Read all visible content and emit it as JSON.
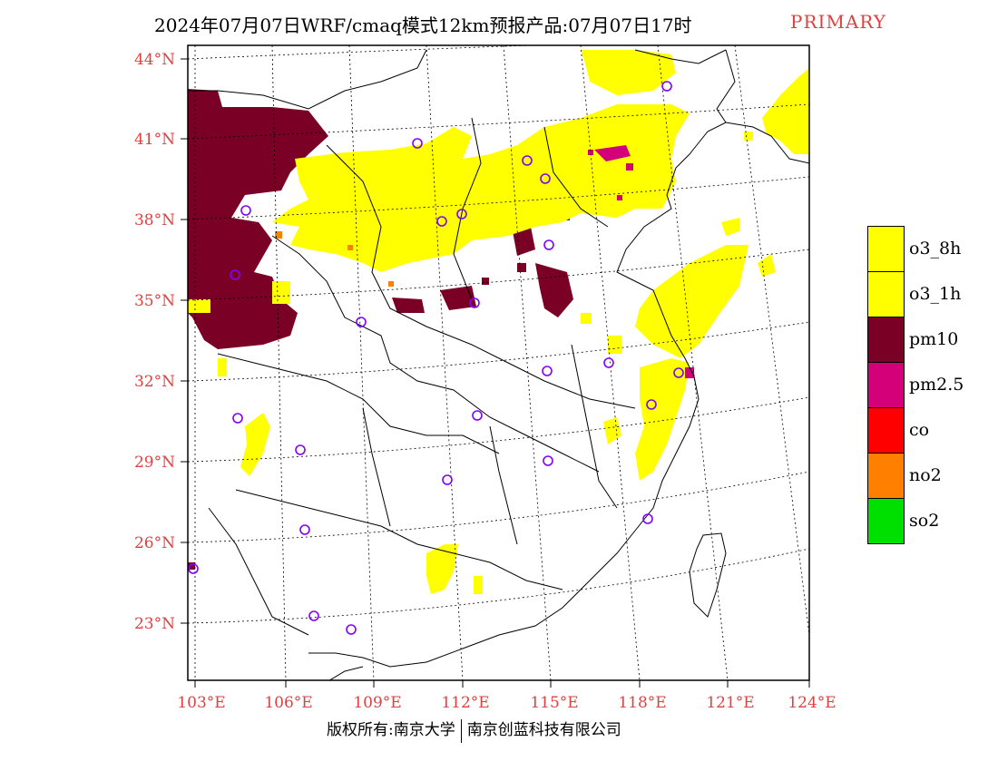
{
  "title": {
    "main": "2024年07月07日WRF/cmaq模式12km预报产品:07月07日17时",
    "product_type": "PRIMARY",
    "product_color": "#e04040"
  },
  "map": {
    "lat_labels": [
      "44°N",
      "41°N",
      "38°N",
      "35°N",
      "32°N",
      "29°N",
      "26°N",
      "23°N"
    ],
    "lon_labels": [
      "103°E",
      "106°E",
      "109°E",
      "112°E",
      "115°E",
      "118°E",
      "121°E",
      "124°E"
    ],
    "label_color": "#e04040",
    "station_marker_color": "#8000ff"
  },
  "legend": {
    "items": [
      {
        "label": "o3_8h",
        "color": "#ffff00"
      },
      {
        "label": "o3_1h",
        "color": "#ffff00"
      },
      {
        "label": "pm10",
        "color": "#7a0026"
      },
      {
        "label": "pm2.5",
        "color": "#d4007a"
      },
      {
        "label": "co",
        "color": "#ff0000"
      },
      {
        "label": "no2",
        "color": "#ff8000"
      },
      {
        "label": "so2",
        "color": "#00e000"
      }
    ]
  },
  "footer": {
    "left": "版权所有:南京大学",
    "right": "南京创蓝科技有限公司"
  }
}
